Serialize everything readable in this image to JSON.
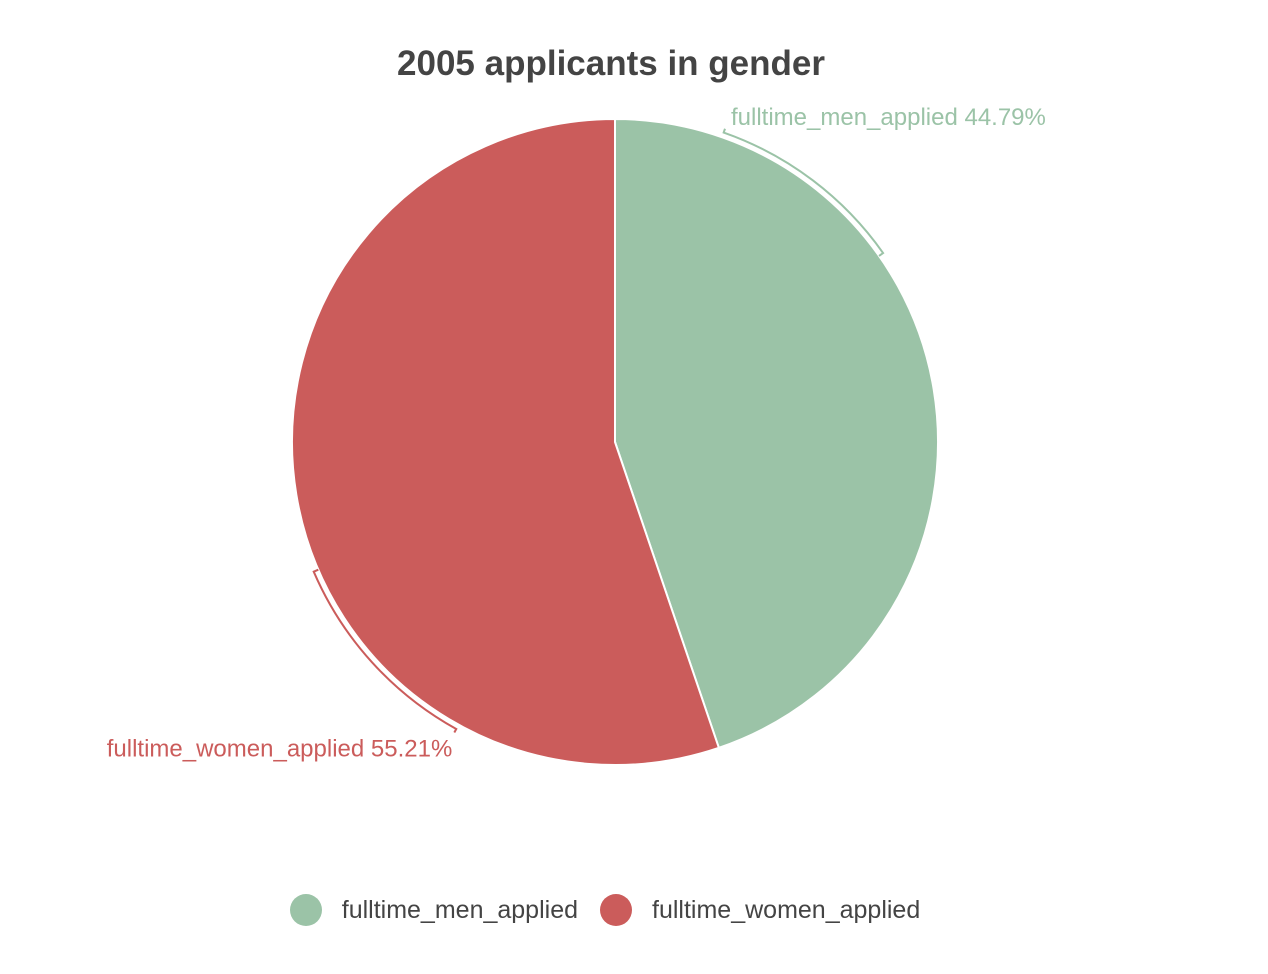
{
  "chart_data": {
    "type": "pie",
    "title": "2005 applicants in gender",
    "slices": [
      {
        "name": "fulltime_men_applied",
        "value": 44.79,
        "label": "fulltime_men_applied 44.79%",
        "color": "#9bc3a7"
      },
      {
        "name": "fulltime_women_applied",
        "value": 55.21,
        "label": "fulltime_women_applied 55.21%",
        "color": "#cb5c5b"
      }
    ],
    "legend": {
      "position": "bottom",
      "items": [
        "fulltime_men_applied",
        "fulltime_women_applied"
      ]
    }
  }
}
